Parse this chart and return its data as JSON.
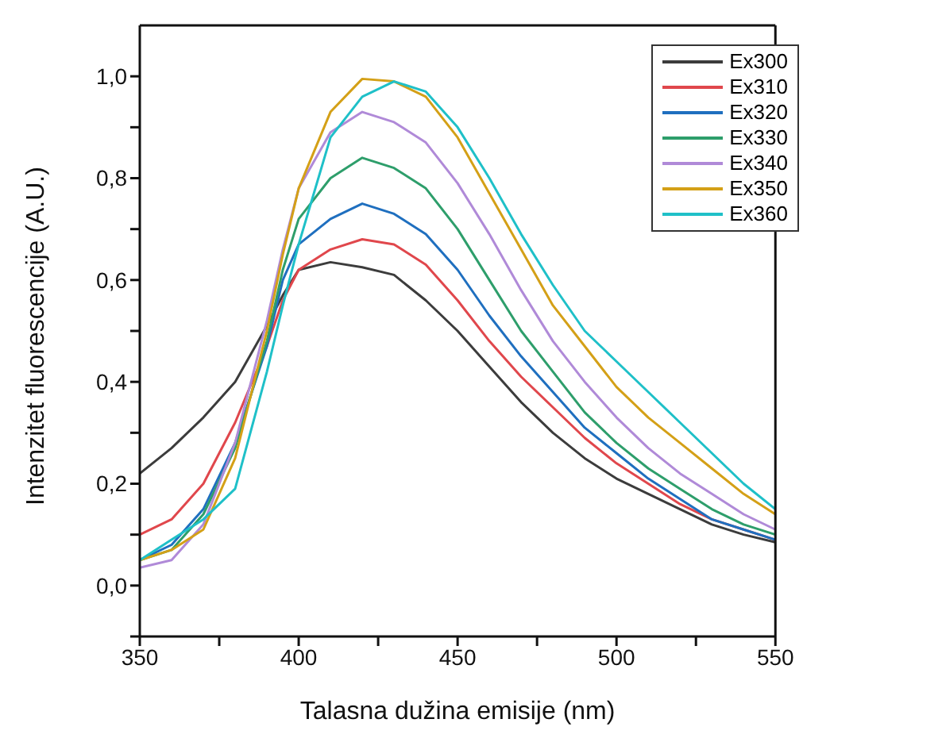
{
  "chart_data": {
    "type": "line",
    "xlabel": "Talasna dužina emisije (nm)",
    "ylabel": "Intenzitet fluorescencije (A.U.)",
    "x": [
      350,
      360,
      370,
      380,
      390,
      395,
      400,
      410,
      420,
      430,
      440,
      450,
      460,
      470,
      480,
      490,
      500,
      510,
      520,
      530,
      540,
      550
    ],
    "series": [
      {
        "name": "Ex300",
        "color": "#3c3c3c",
        "values": [
          0.22,
          0.27,
          0.33,
          0.4,
          0.51,
          0.57,
          0.62,
          0.635,
          0.625,
          0.61,
          0.56,
          0.5,
          0.43,
          0.36,
          0.3,
          0.25,
          0.21,
          0.18,
          0.15,
          0.12,
          0.1,
          0.085
        ]
      },
      {
        "name": "Ex310",
        "color": "#e0474c",
        "values": [
          0.1,
          0.13,
          0.2,
          0.32,
          0.47,
          0.56,
          0.62,
          0.66,
          0.68,
          0.67,
          0.63,
          0.56,
          0.48,
          0.41,
          0.35,
          0.29,
          0.24,
          0.2,
          0.16,
          0.13,
          0.11,
          0.09
        ]
      },
      {
        "name": "Ex320",
        "color": "#1f6fbf",
        "values": [
          0.05,
          0.08,
          0.15,
          0.28,
          0.47,
          0.6,
          0.67,
          0.72,
          0.75,
          0.73,
          0.69,
          0.62,
          0.53,
          0.45,
          0.38,
          0.31,
          0.26,
          0.21,
          0.17,
          0.13,
          0.11,
          0.09
        ]
      },
      {
        "name": "Ex330",
        "color": "#2e9e6b",
        "values": [
          0.05,
          0.07,
          0.14,
          0.27,
          0.48,
          0.62,
          0.72,
          0.8,
          0.84,
          0.82,
          0.78,
          0.7,
          0.6,
          0.5,
          0.42,
          0.34,
          0.28,
          0.23,
          0.19,
          0.15,
          0.12,
          0.1
        ]
      },
      {
        "name": "Ex340",
        "color": "#b08ad8",
        "values": [
          0.035,
          0.05,
          0.12,
          0.28,
          0.52,
          0.66,
          0.78,
          0.89,
          0.93,
          0.91,
          0.87,
          0.79,
          0.69,
          0.58,
          0.48,
          0.4,
          0.33,
          0.27,
          0.22,
          0.18,
          0.14,
          0.11
        ]
      },
      {
        "name": "Ex350",
        "color": "#d4a017",
        "values": [
          0.05,
          0.07,
          0.11,
          0.25,
          0.5,
          0.65,
          0.78,
          0.93,
          0.995,
          0.99,
          0.96,
          0.88,
          0.77,
          0.66,
          0.55,
          0.47,
          0.39,
          0.33,
          0.28,
          0.23,
          0.18,
          0.14
        ]
      },
      {
        "name": "Ex360",
        "color": "#1fc0c8",
        "values": [
          0.05,
          0.09,
          0.13,
          0.19,
          0.42,
          0.55,
          0.67,
          0.88,
          0.96,
          0.99,
          0.97,
          0.9,
          0.8,
          0.69,
          0.59,
          0.5,
          0.44,
          0.38,
          0.32,
          0.26,
          0.2,
          0.15
        ]
      }
    ],
    "xlim": [
      350,
      550
    ],
    "xticks": [
      350,
      {
        "value": 375,
        "label": null
      },
      400,
      {
        "value": 425,
        "label": null
      },
      450,
      {
        "value": 475,
        "label": null
      },
      500,
      {
        "value": 525,
        "label": null
      },
      550
    ],
    "ylim": [
      -0.1,
      1.1
    ],
    "yticks": [
      {
        "value": -0.1,
        "label": null
      },
      {
        "value": 0,
        "label": "0,0"
      },
      {
        "value": 0.1,
        "label": null
      },
      {
        "value": 0.2,
        "label": "0,2"
      },
      {
        "value": 0.3,
        "label": null
      },
      {
        "value": 0.4,
        "label": "0,4"
      },
      {
        "value": 0.5,
        "label": null
      },
      {
        "value": 0.6,
        "label": "0,6"
      },
      {
        "value": 0.7,
        "label": null
      },
      {
        "value": 0.8,
        "label": "0,8"
      },
      {
        "value": 0.9,
        "label": null
      },
      {
        "value": 1.0,
        "label": "1,0"
      }
    ],
    "legend": "top right",
    "grid": false,
    "marker": "none",
    "line_style": "solid"
  }
}
